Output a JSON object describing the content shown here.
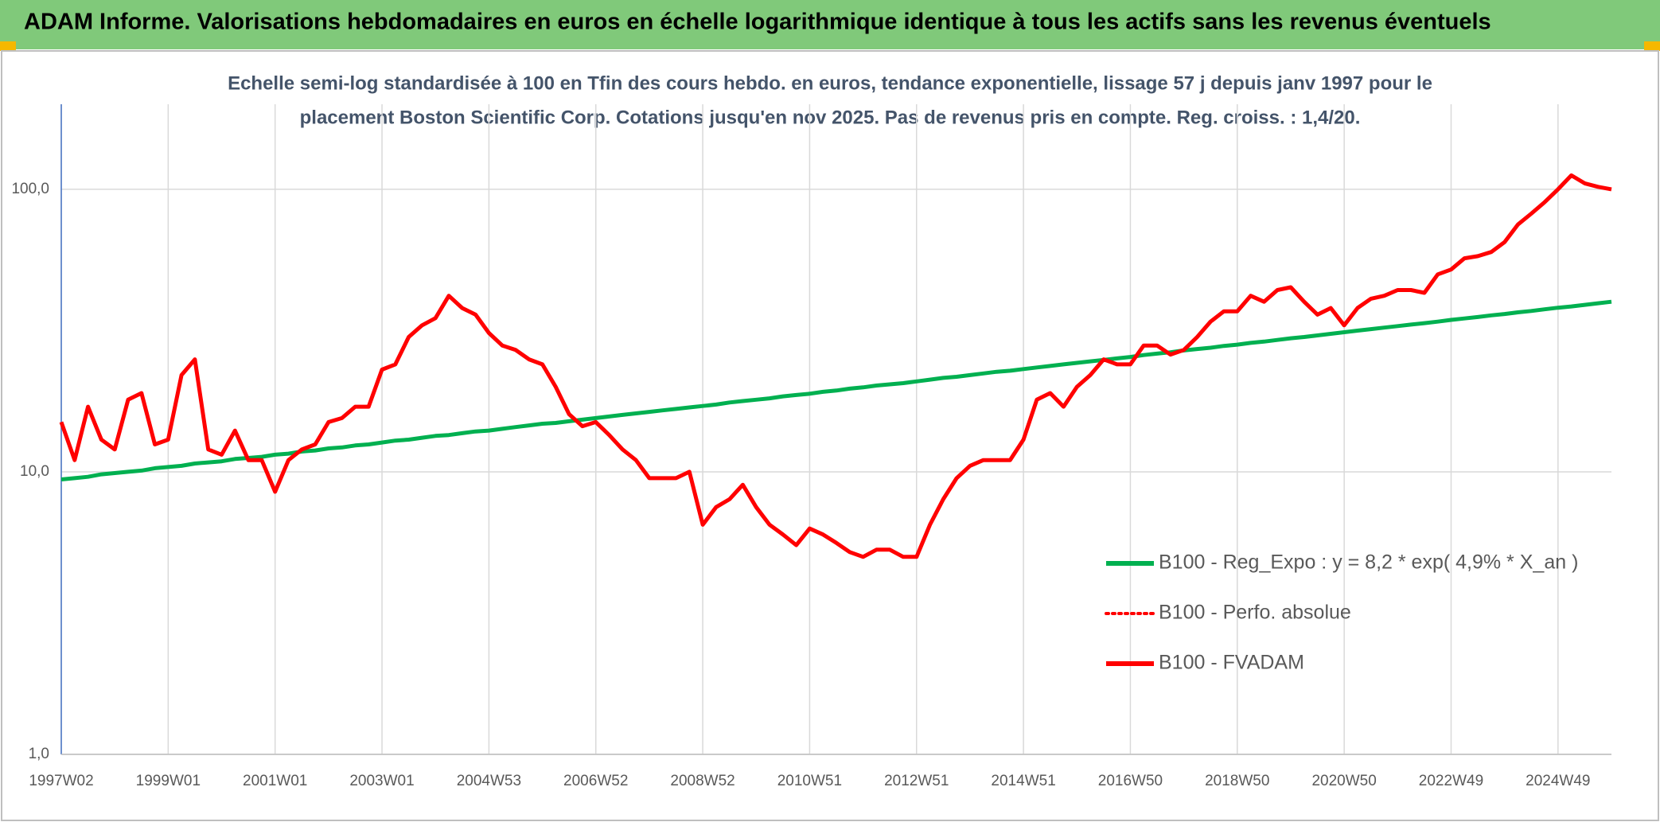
{
  "chart_data": {
    "type": "line",
    "title": "ADAM Informe. Valorisations hebdomadaires en euros en échelle logarithmique identique à tous les actifs sans les revenus éventuels",
    "subtitle": [
      "Echelle semi-log standardisée à 100 en Tfin des cours hebdo. en euros, tendance exponentielle, lissage 57 j depuis janv 1997 pour le",
      "placement Boston Scientific Corp. Cotations jusqu'en nov 2025. Pas de revenus pris en compte. Reg. croiss. : 1,4/20."
    ],
    "log_scale": true,
    "grid": true,
    "legend_position": "center right",
    "ylim": [
      1,
      200
    ],
    "yticks": [
      {
        "value": 1,
        "label": "1,0"
      },
      {
        "value": 10,
        "label": "10,0"
      },
      {
        "value": 100,
        "label": "100,0"
      }
    ],
    "categories": [
      "1997W02",
      null,
      null,
      null,
      null,
      null,
      null,
      null,
      "1999W01",
      null,
      null,
      null,
      null,
      null,
      null,
      null,
      "2001W01",
      null,
      null,
      null,
      null,
      null,
      null,
      null,
      "2003W01",
      null,
      null,
      null,
      null,
      null,
      null,
      null,
      "2004W53",
      null,
      null,
      null,
      null,
      null,
      null,
      null,
      "2006W52",
      null,
      null,
      null,
      null,
      null,
      null,
      null,
      "2008W52",
      null,
      null,
      null,
      null,
      null,
      null,
      null,
      "2010W51",
      null,
      null,
      null,
      null,
      null,
      null,
      null,
      "2012W51",
      null,
      null,
      null,
      null,
      null,
      null,
      null,
      "2014W51",
      null,
      null,
      null,
      null,
      null,
      null,
      null,
      "2016W50",
      null,
      null,
      null,
      null,
      null,
      null,
      null,
      "2018W50",
      null,
      null,
      null,
      null,
      null,
      null,
      null,
      "2020W50",
      null,
      null,
      null,
      null,
      null,
      null,
      null,
      "2022W49",
      null,
      null,
      null,
      null,
      null,
      null,
      null,
      "2024W49",
      null,
      null,
      null,
      null
    ],
    "series": [
      {
        "name": "B100 - Reg_Expo : y = 8,2 * exp( 4,9% *  X_an )",
        "color": "#00b050",
        "line_style": "solid",
        "values": [
          9.4,
          9.5,
          9.6,
          9.8,
          9.9,
          10.0,
          10.1,
          10.3,
          10.4,
          10.5,
          10.7,
          10.8,
          10.9,
          11.1,
          11.2,
          11.3,
          11.5,
          11.6,
          11.8,
          11.9,
          12.1,
          12.2,
          12.4,
          12.5,
          12.7,
          12.9,
          13.0,
          13.2,
          13.4,
          13.5,
          13.7,
          13.9,
          14.0,
          14.2,
          14.4,
          14.6,
          14.8,
          14.9,
          15.1,
          15.3,
          15.5,
          15.7,
          15.9,
          16.1,
          16.3,
          16.5,
          16.7,
          16.9,
          17.1,
          17.3,
          17.6,
          17.8,
          18.0,
          18.2,
          18.5,
          18.7,
          18.9,
          19.2,
          19.4,
          19.7,
          19.9,
          20.2,
          20.4,
          20.6,
          20.9,
          21.2,
          21.5,
          21.7,
          22.0,
          22.3,
          22.6,
          22.8,
          23.1,
          23.4,
          23.7,
          24.0,
          24.3,
          24.6,
          24.9,
          25.2,
          25.5,
          25.9,
          26.2,
          26.5,
          26.9,
          27.2,
          27.5,
          27.9,
          28.2,
          28.6,
          28.9,
          29.3,
          29.7,
          30.0,
          30.4,
          30.8,
          31.2,
          31.6,
          32.0,
          32.4,
          32.8,
          33.2,
          33.6,
          34.0,
          34.5,
          34.9,
          35.3,
          35.8,
          36.2,
          36.7,
          37.1,
          37.6,
          38.1,
          38.5,
          39.0,
          39.5,
          40.0
        ]
      },
      {
        "name": "B100 - Perfo. absolue",
        "color": "#ff0000",
        "line_style": "dotted",
        "values": [
          15,
          11,
          17,
          13,
          12,
          18,
          19,
          12.5,
          13,
          22,
          25,
          12,
          11.5,
          14,
          11,
          11,
          8.5,
          11,
          12,
          12.5,
          15,
          15.5,
          17,
          17,
          23,
          24,
          30,
          33,
          35,
          42,
          38,
          36,
          31,
          28,
          27,
          25,
          24,
          20,
          16,
          14.5,
          15,
          13.5,
          12,
          11,
          9.5,
          9.5,
          9.5,
          10,
          6.5,
          7.5,
          8,
          9,
          7.5,
          6.5,
          6,
          5.5,
          6.3,
          6,
          5.6,
          5.2,
          5,
          5.3,
          5.3,
          5,
          5,
          6.5,
          8,
          9.5,
          10.5,
          11,
          11,
          11,
          13,
          18,
          19,
          17,
          20,
          22,
          25,
          24,
          24,
          28,
          28,
          26,
          27,
          30,
          34,
          37,
          37,
          42,
          40,
          44,
          45,
          40,
          36,
          38,
          33,
          38,
          41,
          42,
          44,
          44,
          43,
          50,
          52,
          57,
          58,
          60,
          65,
          75,
          82,
          90,
          100,
          112,
          105,
          102,
          100
        ]
      },
      {
        "name": "B100 - FVADAM",
        "color": "#ff0000",
        "line_style": "solid",
        "values": [
          15,
          11,
          17,
          13,
          12,
          18,
          19,
          12.5,
          13,
          22,
          25,
          12,
          11.5,
          14,
          11,
          11,
          8.5,
          11,
          12,
          12.5,
          15,
          15.5,
          17,
          17,
          23,
          24,
          30,
          33,
          35,
          42,
          38,
          36,
          31,
          28,
          27,
          25,
          24,
          20,
          16,
          14.5,
          15,
          13.5,
          12,
          11,
          9.5,
          9.5,
          9.5,
          10,
          6.5,
          7.5,
          8,
          9,
          7.5,
          6.5,
          6,
          5.5,
          6.3,
          6,
          5.6,
          5.2,
          5,
          5.3,
          5.3,
          5,
          5,
          6.5,
          8,
          9.5,
          10.5,
          11,
          11,
          11,
          13,
          18,
          19,
          17,
          20,
          22,
          25,
          24,
          24,
          28,
          28,
          26,
          27,
          30,
          34,
          37,
          37,
          42,
          40,
          44,
          45,
          40,
          36,
          38,
          33,
          38,
          41,
          42,
          44,
          44,
          43,
          50,
          52,
          57,
          58,
          60,
          65,
          75,
          82,
          90,
          100,
          112,
          105,
          102,
          100
        ]
      }
    ]
  }
}
